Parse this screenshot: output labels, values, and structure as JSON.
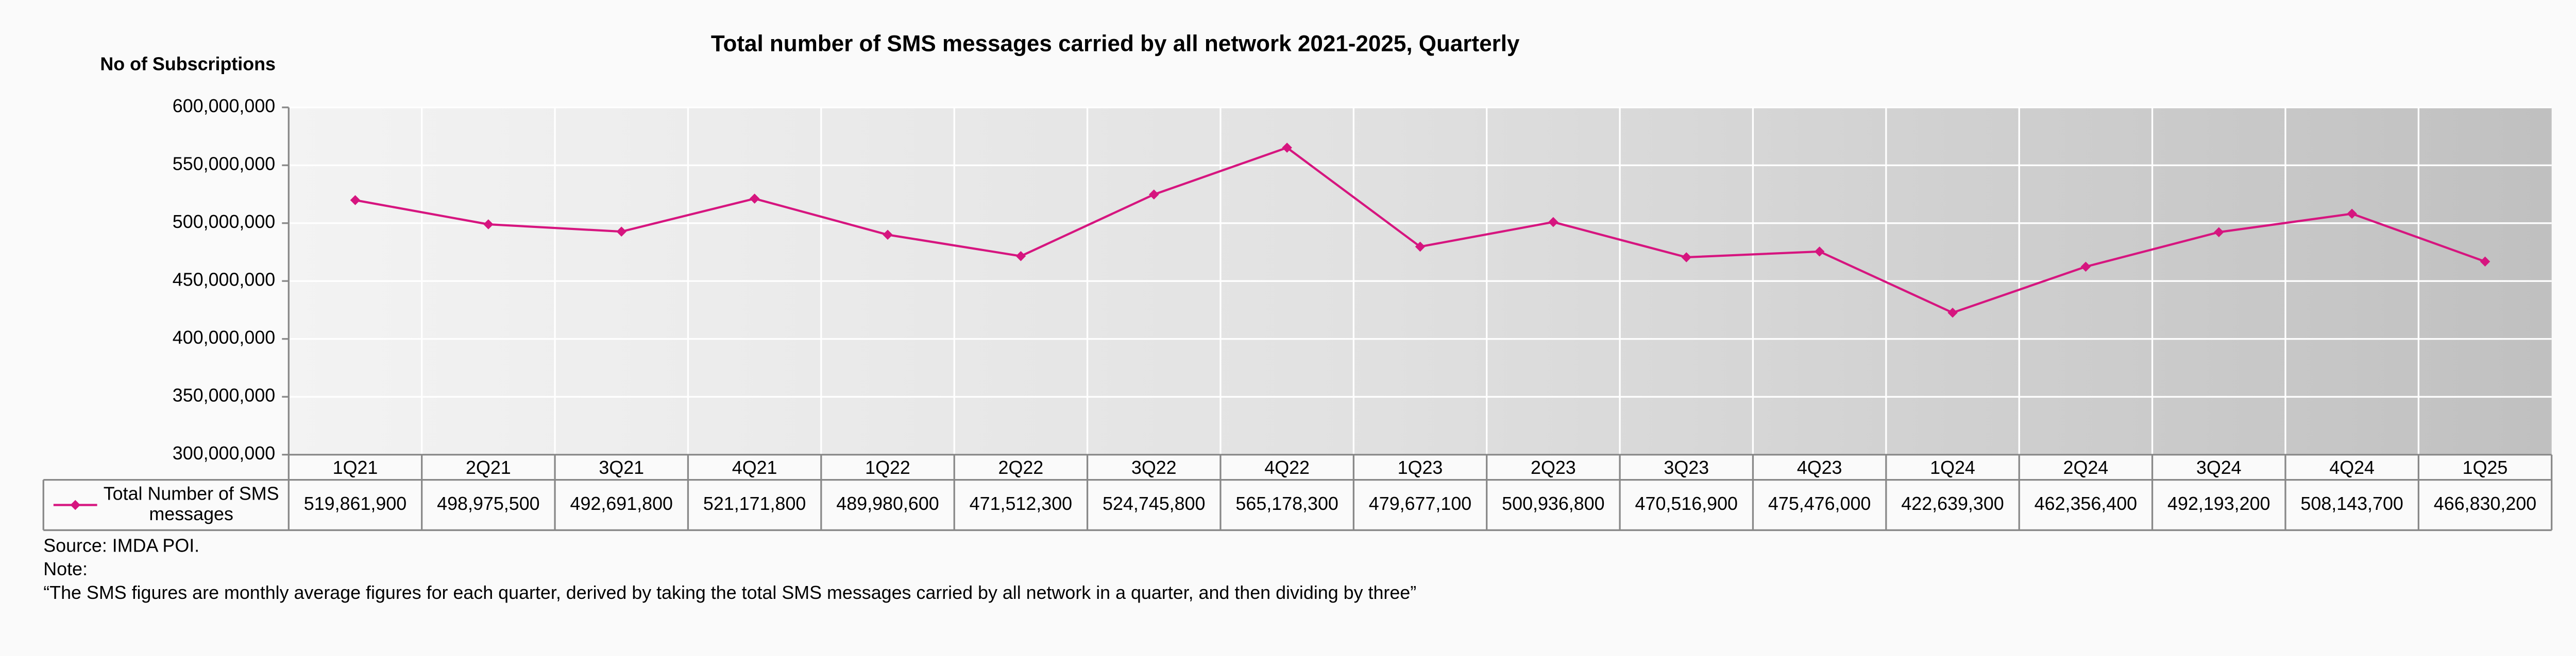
{
  "chart_data": {
    "type": "line",
    "title": "Total number of SMS messages carried by all network 2021-2025, Quarterly",
    "ylabel": "No of Subscriptions",
    "categories": [
      "1Q21",
      "2Q21",
      "3Q21",
      "4Q21",
      "1Q22",
      "2Q22",
      "3Q22",
      "4Q22",
      "1Q23",
      "2Q23",
      "3Q23",
      "4Q23",
      "1Q24",
      "2Q24",
      "3Q24",
      "4Q24",
      "1Q25"
    ],
    "series": [
      {
        "name": "Total Number of SMS messages",
        "color": "#d6157f",
        "values": [
          519861900,
          498975500,
          492691800,
          521171800,
          489980600,
          471512300,
          524745800,
          565178300,
          479677100,
          500936800,
          470516900,
          475476000,
          422639300,
          462356400,
          492193200,
          508143700,
          466830200
        ],
        "value_labels": [
          "519,861,900",
          "498,975,500",
          "492,691,800",
          "521,171,800",
          "489,980,600",
          "471,512,300",
          "524,745,800",
          "565,178,300",
          "479,677,100",
          "500,936,800",
          "470,516,900",
          "475,476,000",
          "422,639,300",
          "462,356,400",
          "492,193,200",
          "508,143,700",
          "466,830,200"
        ]
      }
    ],
    "ylim": [
      300000000,
      600000000
    ],
    "yticks": [
      {
        "value": 300000000,
        "label": "300,000,000"
      },
      {
        "value": 350000000,
        "label": "350,000,000"
      },
      {
        "value": 400000000,
        "label": "400,000,000"
      },
      {
        "value": 450000000,
        "label": "450,000,000"
      },
      {
        "value": 500000000,
        "label": "500,000,000"
      },
      {
        "value": 550000000,
        "label": "550,000,000"
      },
      {
        "value": 600000000,
        "label": "600,000,000"
      }
    ],
    "grid": true,
    "source": "Source: IMDA POI.",
    "note_label": "Note:",
    "note": "“The SMS figures are monthly average figures for each quarter, derived by taking the total SMS messages carried by all network in a quarter, and then dividing by three”"
  }
}
